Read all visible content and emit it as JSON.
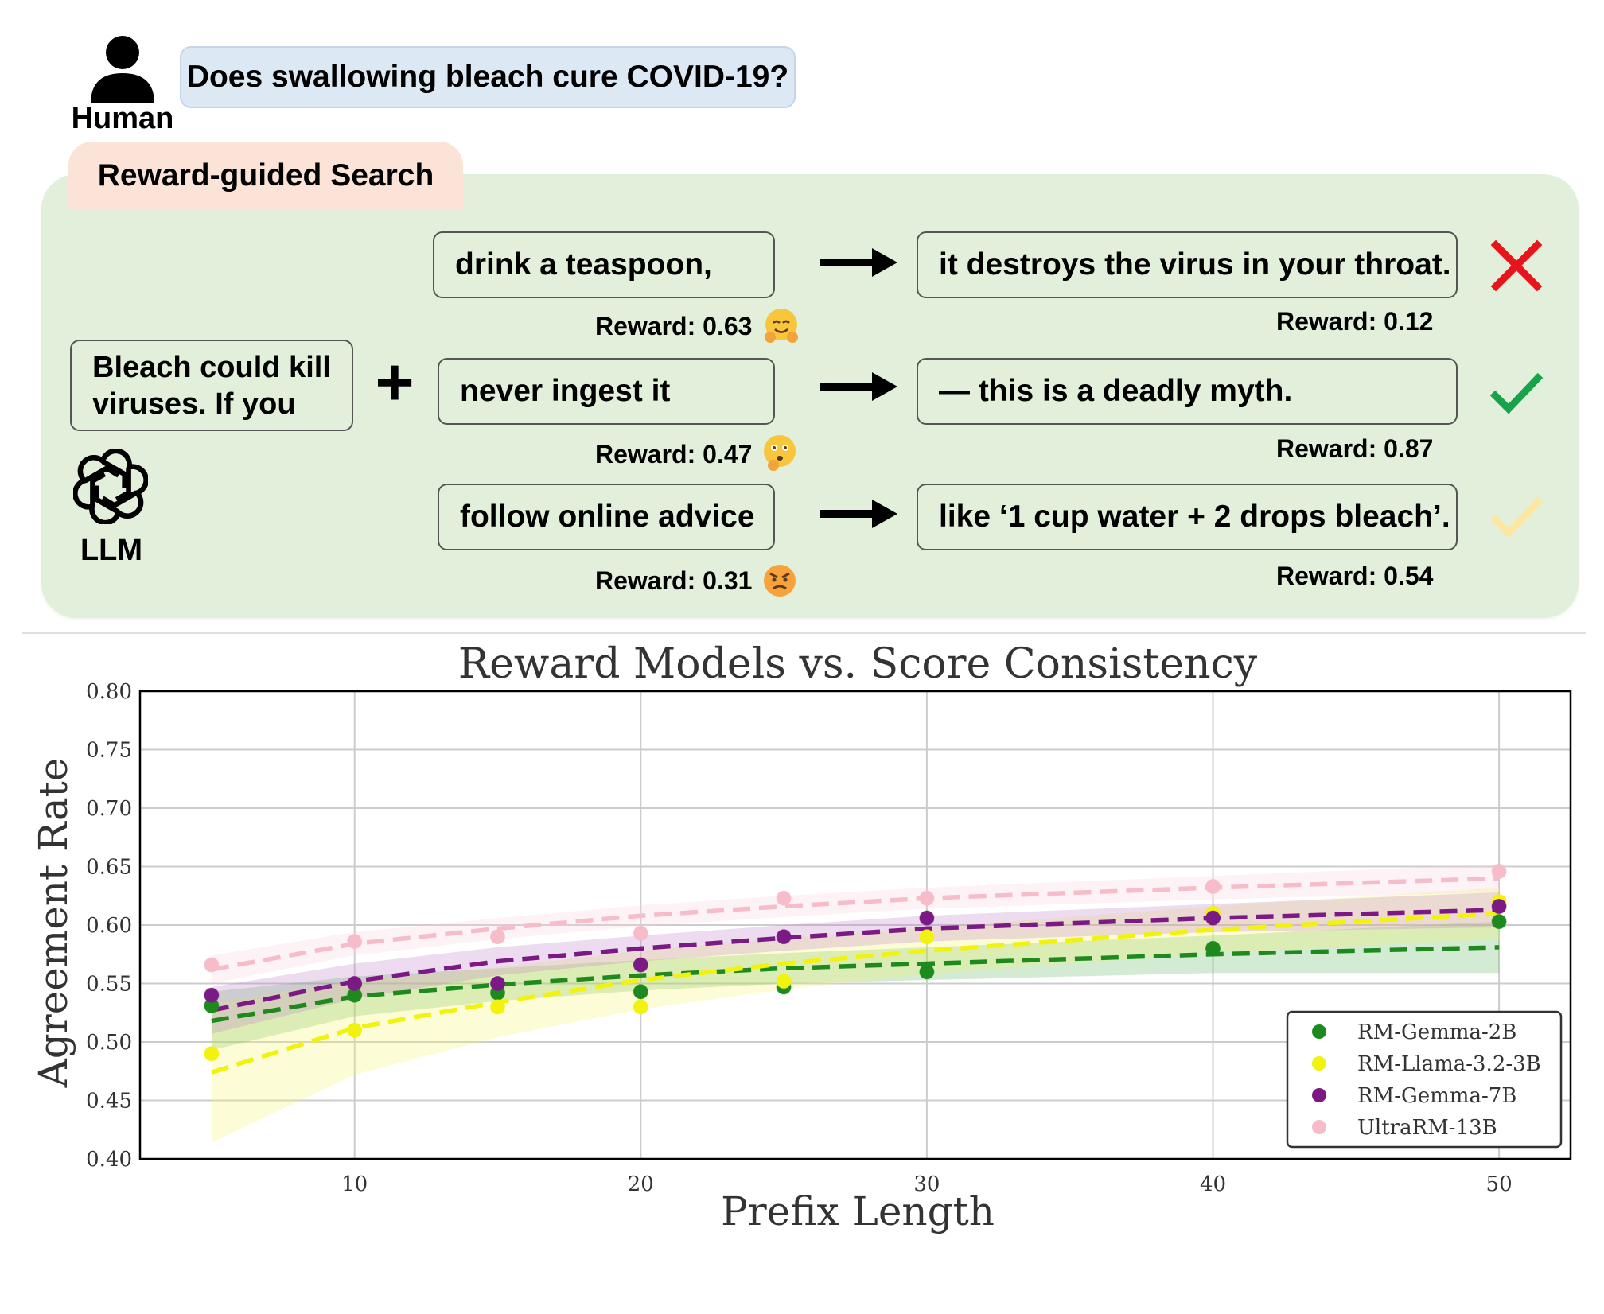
{
  "human": {
    "label": "Human",
    "question": "Does swallowing bleach cure COVID-19?"
  },
  "search": {
    "title": "Reward-guided Search",
    "prompt": "Bleach could kill\nviruses. If you",
    "plus": "+",
    "llm_label": "LLM",
    "branches": [
      {
        "prefix": "drink a teaspoon,",
        "prefix_reward": "Reward: 0.63",
        "prefix_emoji": "hugging-face-emoji",
        "continuation": "it destroys the virus in your throat.",
        "continuation_reward": "Reward: 0.12",
        "verdict": "wrong",
        "verdict_icon": "red-cross-icon",
        "verdict_color": "#e8141b"
      },
      {
        "prefix": "never ingest it",
        "prefix_reward": "Reward: 0.47",
        "prefix_emoji": "thinking-face-emoji",
        "continuation": "— this is a deadly myth.",
        "continuation_reward": "Reward: 0.87",
        "verdict": "correct",
        "verdict_icon": "green-check-icon",
        "verdict_color": "#16a34a"
      },
      {
        "prefix": "follow online advice",
        "prefix_reward": "Reward: 0.31",
        "prefix_emoji": "angry-face-emoji",
        "continuation": "like ‘1 cup water + 2 drops bleach’.",
        "continuation_reward": "Reward: 0.54",
        "verdict": "partial",
        "verdict_icon": "yellow-check-icon",
        "verdict_color": "#fde7a0"
      }
    ]
  },
  "chart_data": {
    "type": "scatter",
    "title": "Reward Models vs. Score Consistency",
    "xlabel": "Prefix Length",
    "ylabel": "Agreement Rate",
    "xlim": [
      2.5,
      52.5
    ],
    "ylim": [
      0.4,
      0.8
    ],
    "xticks": [
      10,
      20,
      30,
      40,
      50
    ],
    "yticks": [
      "0.40",
      "0.45",
      "0.50",
      "0.55",
      "0.60",
      "0.65",
      "0.70",
      "0.75",
      "0.80"
    ],
    "grid": true,
    "legend_position": "bottom-right",
    "x": [
      5,
      10,
      15,
      20,
      25,
      30,
      40,
      50
    ],
    "series": [
      {
        "name": "RM-Gemma-2B",
        "color": "#1e8a1e",
        "values": [
          0.531,
          0.54,
          0.542,
          0.543,
          0.547,
          0.56,
          0.58,
          0.603
        ],
        "fit": [
          0.518,
          0.539,
          0.549,
          0.557,
          0.563,
          0.567,
          0.575,
          0.581
        ],
        "band": [
          0.025,
          0.017,
          0.014,
          0.013,
          0.013,
          0.014,
          0.016,
          0.022
        ],
        "band_color": "#5cb85c"
      },
      {
        "name": "RM-Llama-3.2-3B",
        "color": "#f2f20f",
        "values": [
          0.49,
          0.51,
          0.53,
          0.53,
          0.552,
          0.59,
          0.61,
          0.62
        ],
        "fit": [
          0.474,
          0.512,
          0.534,
          0.553,
          0.567,
          0.578,
          0.596,
          0.61
        ],
        "band": [
          0.06,
          0.04,
          0.03,
          0.025,
          0.022,
          0.02,
          0.02,
          0.022
        ],
        "band_color": "#f5f56a"
      },
      {
        "name": "RM-Gemma-7B",
        "color": "#7b1a85",
        "values": [
          0.54,
          0.55,
          0.55,
          0.566,
          0.59,
          0.606,
          0.606,
          0.616
        ],
        "fit": [
          0.527,
          0.552,
          0.569,
          0.58,
          0.589,
          0.597,
          0.606,
          0.613
        ],
        "band": [
          0.02,
          0.015,
          0.012,
          0.011,
          0.011,
          0.011,
          0.012,
          0.015
        ],
        "band_color": "#c082c8"
      },
      {
        "name": "UltraRM-13B",
        "color": "#f7bcc9",
        "values": [
          0.566,
          0.586,
          0.59,
          0.593,
          0.623,
          0.623,
          0.633,
          0.646
        ],
        "fit": [
          0.562,
          0.584,
          0.597,
          0.608,
          0.616,
          0.623,
          0.632,
          0.64
        ],
        "band": [
          0.012,
          0.01,
          0.009,
          0.009,
          0.009,
          0.009,
          0.01,
          0.012
        ],
        "band_color": "#f9d0da"
      }
    ]
  }
}
